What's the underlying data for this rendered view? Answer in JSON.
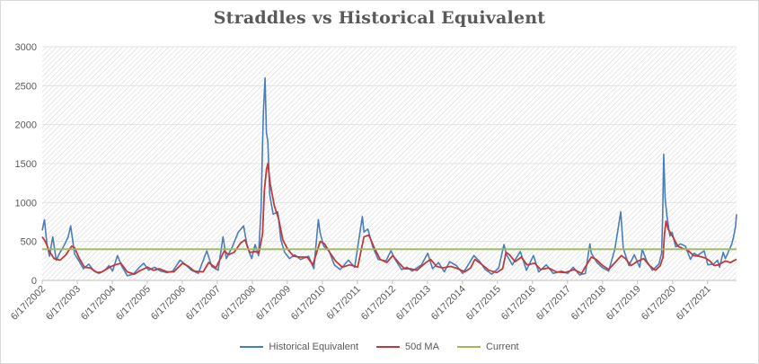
{
  "colors": {
    "historical": "#4a7ebb",
    "ma": "#c0393b",
    "current": "#9bbb59",
    "grid": "#e3e3e3",
    "hatch": "#d0d0d0"
  },
  "chart_data": {
    "type": "line",
    "title": "Straddles vs Historical Equivalent",
    "ylim": [
      0,
      3000
    ],
    "y_ticks": [
      0,
      500,
      1000,
      1500,
      2000,
      2500,
      3000
    ],
    "x_tick_labels": [
      "6/17/2002",
      "6/17/2003",
      "6/17/2004",
      "6/17/2005",
      "6/17/2006",
      "6/17/2007",
      "6/17/2008",
      "6/17/2009",
      "6/17/2010",
      "6/17/2011",
      "6/17/2012",
      "6/17/2013",
      "6/17/2014",
      "6/17/2015",
      "6/17/2016",
      "6/17/2017",
      "6/17/2018",
      "6/17/2019",
      "6/17/2020",
      "6/17/2021"
    ],
    "x_range": [
      "2002-06-17",
      "2022-04-15"
    ],
    "grid": "horizontal",
    "legend_position": "bottom",
    "series": [
      {
        "name": "Historical Equivalent",
        "color_key": "historical",
        "points": [
          [
            "2002-06-17",
            640
          ],
          [
            "2002-07-10",
            780
          ],
          [
            "2002-08-05",
            470
          ],
          [
            "2002-09-01",
            310
          ],
          [
            "2002-10-05",
            560
          ],
          [
            "2002-11-10",
            260
          ],
          [
            "2002-12-20",
            360
          ],
          [
            "2003-02-05",
            460
          ],
          [
            "2003-03-15",
            560
          ],
          [
            "2003-04-10",
            700
          ],
          [
            "2003-05-20",
            340
          ],
          [
            "2003-07-05",
            250
          ],
          [
            "2003-08-20",
            150
          ],
          [
            "2003-10-15",
            210
          ],
          [
            "2003-12-10",
            120
          ],
          [
            "2004-02-01",
            90
          ],
          [
            "2004-04-01",
            130
          ],
          [
            "2004-05-15",
            190
          ],
          [
            "2004-06-20",
            120
          ],
          [
            "2004-08-10",
            320
          ],
          [
            "2004-09-25",
            180
          ],
          [
            "2004-11-20",
            60
          ],
          [
            "2005-01-20",
            80
          ],
          [
            "2005-03-20",
            160
          ],
          [
            "2005-05-10",
            220
          ],
          [
            "2005-07-01",
            130
          ],
          [
            "2005-09-01",
            170
          ],
          [
            "2005-11-01",
            120
          ],
          [
            "2006-01-10",
            100
          ],
          [
            "2006-03-10",
            120
          ],
          [
            "2006-05-25",
            260
          ],
          [
            "2006-07-15",
            210
          ],
          [
            "2006-09-20",
            130
          ],
          [
            "2006-12-01",
            90
          ],
          [
            "2007-02-27",
            380
          ],
          [
            "2007-04-20",
            180
          ],
          [
            "2007-06-25",
            130
          ],
          [
            "2007-08-16",
            560
          ],
          [
            "2007-09-20",
            280
          ],
          [
            "2007-11-20",
            430
          ],
          [
            "2008-01-22",
            620
          ],
          [
            "2008-03-17",
            700
          ],
          [
            "2008-04-25",
            430
          ],
          [
            "2008-06-10",
            280
          ],
          [
            "2008-07-15",
            460
          ],
          [
            "2008-08-20",
            320
          ],
          [
            "2008-09-15",
            900
          ],
          [
            "2008-09-29",
            1650
          ],
          [
            "2008-10-10",
            2150
          ],
          [
            "2008-10-27",
            2600
          ],
          [
            "2008-11-10",
            1900
          ],
          [
            "2008-11-25",
            1780
          ],
          [
            "2008-12-15",
            1100
          ],
          [
            "2009-01-20",
            850
          ],
          [
            "2009-03-09",
            880
          ],
          [
            "2009-04-10",
            520
          ],
          [
            "2009-05-20",
            360
          ],
          [
            "2009-07-10",
            280
          ],
          [
            "2009-09-01",
            330
          ],
          [
            "2009-11-01",
            270
          ],
          [
            "2010-01-25",
            310
          ],
          [
            "2010-03-20",
            150
          ],
          [
            "2010-05-06",
            780
          ],
          [
            "2010-05-25",
            610
          ],
          [
            "2010-07-01",
            440
          ],
          [
            "2010-08-25",
            380
          ],
          [
            "2010-10-20",
            200
          ],
          [
            "2010-12-20",
            140
          ],
          [
            "2011-03-16",
            260
          ],
          [
            "2011-05-20",
            170
          ],
          [
            "2011-08-08",
            820
          ],
          [
            "2011-08-25",
            620
          ],
          [
            "2011-10-04",
            660
          ],
          [
            "2011-11-25",
            430
          ],
          [
            "2012-01-20",
            270
          ],
          [
            "2012-04-10",
            250
          ],
          [
            "2012-06-01",
            380
          ],
          [
            "2012-07-20",
            260
          ],
          [
            "2012-09-20",
            140
          ],
          [
            "2012-11-15",
            170
          ],
          [
            "2013-01-10",
            120
          ],
          [
            "2013-04-15",
            200
          ],
          [
            "2013-06-20",
            350
          ],
          [
            "2013-08-10",
            150
          ],
          [
            "2013-10-10",
            230
          ],
          [
            "2013-12-10",
            110
          ],
          [
            "2014-02-03",
            240
          ],
          [
            "2014-04-15",
            190
          ],
          [
            "2014-06-20",
            90
          ],
          [
            "2014-08-05",
            180
          ],
          [
            "2014-10-15",
            320
          ],
          [
            "2014-12-16",
            240
          ],
          [
            "2015-02-10",
            140
          ],
          [
            "2015-04-20",
            80
          ],
          [
            "2015-06-30",
            160
          ],
          [
            "2015-08-24",
            460
          ],
          [
            "2015-09-20",
            330
          ],
          [
            "2015-11-20",
            200
          ],
          [
            "2016-01-20",
            330
          ],
          [
            "2016-02-11",
            370
          ],
          [
            "2016-04-15",
            130
          ],
          [
            "2016-06-27",
            320
          ],
          [
            "2016-08-20",
            110
          ],
          [
            "2016-11-08",
            200
          ],
          [
            "2017-01-20",
            90
          ],
          [
            "2017-04-15",
            120
          ],
          [
            "2017-06-20",
            90
          ],
          [
            "2017-08-15",
            170
          ],
          [
            "2017-10-20",
            70
          ],
          [
            "2017-12-20",
            90
          ],
          [
            "2018-02-05",
            470
          ],
          [
            "2018-02-20",
            350
          ],
          [
            "2018-04-20",
            230
          ],
          [
            "2018-06-20",
            160
          ],
          [
            "2018-08-20",
            120
          ],
          [
            "2018-10-24",
            400
          ],
          [
            "2018-12-24",
            880
          ],
          [
            "2019-01-20",
            410
          ],
          [
            "2019-03-20",
            190
          ],
          [
            "2019-05-15",
            330
          ],
          [
            "2019-07-10",
            170
          ],
          [
            "2019-08-05",
            400
          ],
          [
            "2019-09-20",
            250
          ],
          [
            "2019-11-20",
            130
          ],
          [
            "2020-01-27",
            210
          ],
          [
            "2020-02-24",
            350
          ],
          [
            "2020-03-05",
            800
          ],
          [
            "2020-03-16",
            1620
          ],
          [
            "2020-03-31",
            1050
          ],
          [
            "2020-04-20",
            820
          ],
          [
            "2020-05-20",
            570
          ],
          [
            "2020-06-11",
            620
          ],
          [
            "2020-07-20",
            430
          ],
          [
            "2020-09-08",
            470
          ],
          [
            "2020-10-28",
            440
          ],
          [
            "2020-12-20",
            270
          ],
          [
            "2021-01-27",
            350
          ],
          [
            "2021-03-04",
            320
          ],
          [
            "2021-05-12",
            380
          ],
          [
            "2021-06-20",
            200
          ],
          [
            "2021-08-20",
            210
          ],
          [
            "2021-09-28",
            260
          ],
          [
            "2021-10-20",
            170
          ],
          [
            "2021-11-26",
            360
          ],
          [
            "2021-12-20",
            280
          ],
          [
            "2022-01-24",
            380
          ],
          [
            "2022-02-24",
            470
          ],
          [
            "2022-03-15",
            560
          ],
          [
            "2022-04-05",
            690
          ],
          [
            "2022-04-15",
            850
          ]
        ]
      },
      {
        "name": "50d MA",
        "color_key": "ma",
        "points": [
          [
            "2002-06-17",
            560
          ],
          [
            "2002-07-20",
            500
          ],
          [
            "2002-09-01",
            370
          ],
          [
            "2002-10-20",
            280
          ],
          [
            "2002-12-20",
            260
          ],
          [
            "2003-02-20",
            330
          ],
          [
            "2003-04-20",
            440
          ],
          [
            "2003-05-20",
            420
          ],
          [
            "2003-07-10",
            280
          ],
          [
            "2003-09-01",
            170
          ],
          [
            "2003-11-01",
            160
          ],
          [
            "2004-01-10",
            100
          ],
          [
            "2004-03-01",
            110
          ],
          [
            "2004-05-20",
            170
          ],
          [
            "2004-07-15",
            200
          ],
          [
            "2004-09-15",
            220
          ],
          [
            "2004-11-20",
            110
          ],
          [
            "2005-02-01",
            80
          ],
          [
            "2005-04-10",
            130
          ],
          [
            "2005-06-20",
            170
          ],
          [
            "2005-08-20",
            130
          ],
          [
            "2005-10-20",
            150
          ],
          [
            "2006-01-10",
            110
          ],
          [
            "2006-03-20",
            110
          ],
          [
            "2006-06-20",
            220
          ],
          [
            "2006-08-20",
            180
          ],
          [
            "2006-10-20",
            120
          ],
          [
            "2007-01-20",
            110
          ],
          [
            "2007-03-20",
            230
          ],
          [
            "2007-06-01",
            160
          ],
          [
            "2007-08-30",
            380
          ],
          [
            "2007-10-10",
            330
          ],
          [
            "2007-12-10",
            360
          ],
          [
            "2008-02-15",
            480
          ],
          [
            "2008-04-01",
            520
          ],
          [
            "2008-05-20",
            360
          ],
          [
            "2008-07-20",
            370
          ],
          [
            "2008-08-25",
            350
          ],
          [
            "2008-10-01",
            600
          ],
          [
            "2008-10-20",
            1150
          ],
          [
            "2008-11-10",
            1420
          ],
          [
            "2008-11-25",
            1500
          ],
          [
            "2008-12-20",
            1240
          ],
          [
            "2009-02-01",
            960
          ],
          [
            "2009-03-20",
            780
          ],
          [
            "2009-05-01",
            520
          ],
          [
            "2009-06-20",
            400
          ],
          [
            "2009-08-20",
            310
          ],
          [
            "2009-10-20",
            300
          ],
          [
            "2010-01-10",
            300
          ],
          [
            "2010-03-10",
            200
          ],
          [
            "2010-05-25",
            500
          ],
          [
            "2010-07-10",
            470
          ],
          [
            "2010-09-01",
            360
          ],
          [
            "2010-11-01",
            250
          ],
          [
            "2011-01-10",
            170
          ],
          [
            "2011-04-01",
            200
          ],
          [
            "2011-06-20",
            170
          ],
          [
            "2011-08-25",
            560
          ],
          [
            "2011-10-15",
            580
          ],
          [
            "2011-12-10",
            420
          ],
          [
            "2012-02-10",
            270
          ],
          [
            "2012-04-20",
            230
          ],
          [
            "2012-06-20",
            320
          ],
          [
            "2012-08-20",
            230
          ],
          [
            "2012-10-20",
            150
          ],
          [
            "2012-12-20",
            150
          ],
          [
            "2013-03-01",
            130
          ],
          [
            "2013-06-01",
            230
          ],
          [
            "2013-07-20",
            270
          ],
          [
            "2013-09-20",
            180
          ],
          [
            "2013-11-20",
            160
          ],
          [
            "2014-02-15",
            180
          ],
          [
            "2014-05-01",
            150
          ],
          [
            "2014-07-10",
            110
          ],
          [
            "2014-09-10",
            160
          ],
          [
            "2014-10-25",
            270
          ],
          [
            "2014-12-30",
            210
          ],
          [
            "2015-03-20",
            130
          ],
          [
            "2015-06-10",
            100
          ],
          [
            "2015-08-10",
            150
          ],
          [
            "2015-09-15",
            360
          ],
          [
            "2015-10-20",
            330
          ],
          [
            "2015-12-20",
            240
          ],
          [
            "2016-02-20",
            300
          ],
          [
            "2016-04-20",
            200
          ],
          [
            "2016-07-10",
            220
          ],
          [
            "2016-09-10",
            140
          ],
          [
            "2016-12-01",
            160
          ],
          [
            "2017-02-20",
            110
          ],
          [
            "2017-05-20",
            100
          ],
          [
            "2017-08-25",
            140
          ],
          [
            "2017-11-10",
            90
          ],
          [
            "2018-02-20",
            300
          ],
          [
            "2018-04-10",
            270
          ],
          [
            "2018-06-20",
            190
          ],
          [
            "2018-08-20",
            140
          ],
          [
            "2018-10-20",
            220
          ],
          [
            "2018-12-30",
            320
          ],
          [
            "2019-02-10",
            280
          ],
          [
            "2019-04-10",
            190
          ],
          [
            "2019-06-10",
            240
          ],
          [
            "2019-08-20",
            280
          ],
          [
            "2019-10-20",
            190
          ],
          [
            "2019-12-20",
            130
          ],
          [
            "2020-02-10",
            190
          ],
          [
            "2020-03-10",
            300
          ],
          [
            "2020-03-25",
            600
          ],
          [
            "2020-04-10",
            760
          ],
          [
            "2020-05-01",
            660
          ],
          [
            "2020-06-20",
            560
          ],
          [
            "2020-08-10",
            440
          ],
          [
            "2020-10-01",
            410
          ],
          [
            "2020-11-20",
            390
          ],
          [
            "2021-01-20",
            320
          ],
          [
            "2021-03-20",
            310
          ],
          [
            "2021-05-20",
            290
          ],
          [
            "2021-07-10",
            250
          ],
          [
            "2021-08-25",
            190
          ],
          [
            "2021-10-10",
            200
          ],
          [
            "2021-12-20",
            250
          ],
          [
            "2022-02-10",
            230
          ],
          [
            "2022-04-15",
            270
          ]
        ]
      },
      {
        "name": "Current",
        "color_key": "current",
        "points": [
          [
            "2002-06-17",
            400
          ],
          [
            "2022-04-15",
            400
          ]
        ]
      }
    ]
  },
  "legend": {
    "items": [
      "Historical Equivalent",
      "50d MA",
      "Current"
    ]
  }
}
